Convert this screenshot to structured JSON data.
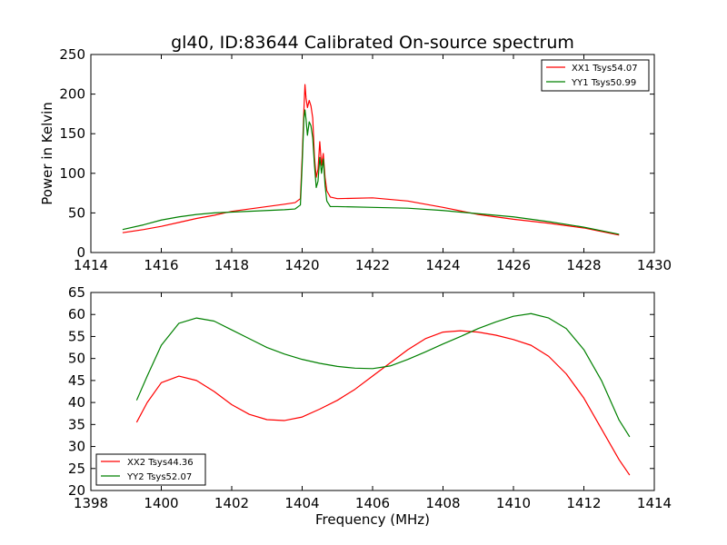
{
  "title": "gl40, ID:83644 Calibrated On-source spectrum",
  "chart_data": [
    {
      "type": "line",
      "title": "gl40, ID:83644 Calibrated On-source spectrum",
      "xlabel": "",
      "ylabel": "Power in Kelvin",
      "xlim": [
        1414,
        1430
      ],
      "ylim": [
        0,
        250
      ],
      "xticks": [
        1414,
        1416,
        1418,
        1420,
        1422,
        1424,
        1426,
        1428,
        1430
      ],
      "yticks": [
        0,
        50,
        100,
        150,
        200,
        250
      ],
      "grid": false,
      "legend_position": "top-right",
      "series": [
        {
          "name": "XX1 Tsys54.07",
          "color": "#ff0000",
          "points": [
            [
              1414.9,
              25
            ],
            [
              1415.5,
              29
            ],
            [
              1416,
              33
            ],
            [
              1416.5,
              38
            ],
            [
              1417,
              43
            ],
            [
              1417.5,
              47
            ],
            [
              1418,
              52
            ],
            [
              1418.5,
              55
            ],
            [
              1419,
              58
            ],
            [
              1419.5,
              61
            ],
            [
              1419.8,
              63
            ],
            [
              1419.95,
              68
            ],
            [
              1420.0,
              120
            ],
            [
              1420.05,
              180
            ],
            [
              1420.08,
              212
            ],
            [
              1420.11,
              195
            ],
            [
              1420.15,
              183
            ],
            [
              1420.2,
              192
            ],
            [
              1420.25,
              185
            ],
            [
              1420.3,
              170
            ],
            [
              1420.35,
              120
            ],
            [
              1420.4,
              95
            ],
            [
              1420.45,
              105
            ],
            [
              1420.5,
              140
            ],
            [
              1420.55,
              110
            ],
            [
              1420.6,
              125
            ],
            [
              1420.65,
              95
            ],
            [
              1420.7,
              78
            ],
            [
              1420.8,
              70
            ],
            [
              1421,
              68
            ],
            [
              1422,
              69
            ],
            [
              1423,
              65
            ],
            [
              1424,
              57
            ],
            [
              1425,
              48
            ],
            [
              1426,
              42
            ],
            [
              1427,
              37
            ],
            [
              1428,
              31
            ],
            [
              1429,
              22
            ]
          ]
        },
        {
          "name": "YY1 Tsys50.99",
          "color": "#008000",
          "points": [
            [
              1414.9,
              29
            ],
            [
              1415.5,
              35
            ],
            [
              1416,
              41
            ],
            [
              1416.5,
              45
            ],
            [
              1417,
              48
            ],
            [
              1417.5,
              50
            ],
            [
              1418,
              51
            ],
            [
              1418.5,
              52
            ],
            [
              1419,
              53
            ],
            [
              1419.5,
              54
            ],
            [
              1419.8,
              55
            ],
            [
              1419.95,
              60
            ],
            [
              1420.0,
              110
            ],
            [
              1420.05,
              170
            ],
            [
              1420.08,
              180
            ],
            [
              1420.11,
              168
            ],
            [
              1420.15,
              148
            ],
            [
              1420.2,
              165
            ],
            [
              1420.25,
              160
            ],
            [
              1420.3,
              145
            ],
            [
              1420.35,
              110
            ],
            [
              1420.4,
              82
            ],
            [
              1420.45,
              90
            ],
            [
              1420.5,
              120
            ],
            [
              1420.55,
              100
            ],
            [
              1420.6,
              118
            ],
            [
              1420.65,
              85
            ],
            [
              1420.7,
              65
            ],
            [
              1420.8,
              58
            ],
            [
              1421,
              58
            ],
            [
              1422,
              57
            ],
            [
              1423,
              56
            ],
            [
              1424,
              53
            ],
            [
              1425,
              49
            ],
            [
              1426,
              45
            ],
            [
              1427,
              39
            ],
            [
              1428,
              32
            ],
            [
              1429,
              23
            ]
          ]
        }
      ]
    },
    {
      "type": "line",
      "title": "",
      "xlabel": "Frequency (MHz)",
      "ylabel": "",
      "xlim": [
        1398,
        1414
      ],
      "ylim": [
        20,
        65
      ],
      "xticks": [
        1398,
        1400,
        1402,
        1404,
        1406,
        1408,
        1410,
        1412,
        1414
      ],
      "yticks": [
        20,
        25,
        30,
        35,
        40,
        45,
        50,
        55,
        60,
        65
      ],
      "grid": false,
      "legend_position": "bottom-left",
      "series": [
        {
          "name": "XX2 Tsys44.36",
          "color": "#ff0000",
          "points": [
            [
              1399.3,
              35.5
            ],
            [
              1399.6,
              40
            ],
            [
              1400,
              44.5
            ],
            [
              1400.5,
              46
            ],
            [
              1401,
              45
            ],
            [
              1401.5,
              42.5
            ],
            [
              1402,
              39.5
            ],
            [
              1402.5,
              37.3
            ],
            [
              1403,
              36.1
            ],
            [
              1403.5,
              35.9
            ],
            [
              1404,
              36.7
            ],
            [
              1404.5,
              38.5
            ],
            [
              1405,
              40.5
            ],
            [
              1405.5,
              43
            ],
            [
              1406,
              46
            ],
            [
              1406.5,
              49
            ],
            [
              1407,
              52
            ],
            [
              1407.5,
              54.5
            ],
            [
              1408,
              56
            ],
            [
              1408.5,
              56.3
            ],
            [
              1409,
              56
            ],
            [
              1409.5,
              55.3
            ],
            [
              1410,
              54.3
            ],
            [
              1410.5,
              53
            ],
            [
              1411,
              50.5
            ],
            [
              1411.5,
              46.5
            ],
            [
              1412,
              41
            ],
            [
              1412.5,
              34
            ],
            [
              1413,
              27
            ],
            [
              1413.3,
              23.5
            ]
          ]
        },
        {
          "name": "YY2 Tsys52.07",
          "color": "#008000",
          "points": [
            [
              1399.3,
              40.5
            ],
            [
              1399.6,
              46
            ],
            [
              1400,
              53
            ],
            [
              1400.5,
              58
            ],
            [
              1401,
              59.2
            ],
            [
              1401.5,
              58.5
            ],
            [
              1402,
              56.5
            ],
            [
              1402.5,
              54.5
            ],
            [
              1403,
              52.5
            ],
            [
              1403.5,
              51
            ],
            [
              1404,
              49.8
            ],
            [
              1404.5,
              48.9
            ],
            [
              1405,
              48.2
            ],
            [
              1405.5,
              47.8
            ],
            [
              1406,
              47.7
            ],
            [
              1406.5,
              48.3
            ],
            [
              1407,
              49.8
            ],
            [
              1407.5,
              51.5
            ],
            [
              1408,
              53.3
            ],
            [
              1408.5,
              55
            ],
            [
              1409,
              56.8
            ],
            [
              1409.5,
              58.3
            ],
            [
              1410,
              59.6
            ],
            [
              1410.5,
              60.2
            ],
            [
              1411,
              59.2
            ],
            [
              1411.5,
              56.8
            ],
            [
              1412,
              52
            ],
            [
              1412.5,
              45
            ],
            [
              1413,
              36
            ],
            [
              1413.3,
              32.2
            ]
          ]
        }
      ]
    }
  ]
}
